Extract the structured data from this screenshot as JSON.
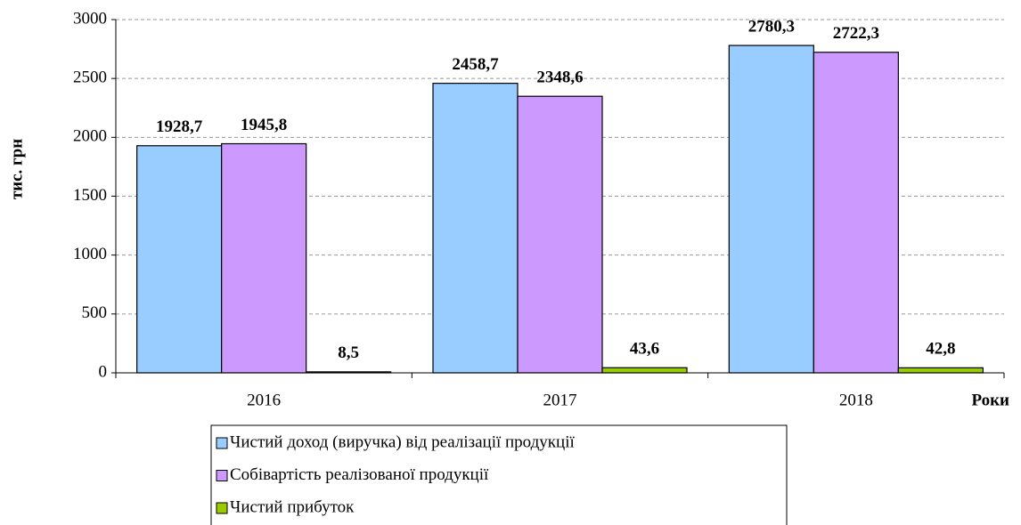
{
  "chart_data": {
    "type": "bar",
    "categories": [
      "2016",
      "2017",
      "2018"
    ],
    "series": [
      {
        "name": "Чистий доход (виручка) від реалізації продукції",
        "color": "#99ccff",
        "values": [
          1928.7,
          2458.7,
          2780.3
        ],
        "value_labels": [
          "1928,7",
          "2458,7",
          "2780,3"
        ]
      },
      {
        "name": "Собівартість реалізованої продукції",
        "color": "#cc99ff",
        "values": [
          1945.8,
          2348.6,
          2722.3
        ],
        "value_labels": [
          "1945,8",
          "2348,6",
          "2722,3"
        ]
      },
      {
        "name": "Чистий прибуток",
        "color": "#99cc00",
        "values": [
          8.5,
          43.6,
          42.8
        ],
        "value_labels": [
          "8,5",
          "43,6",
          "42,8"
        ]
      }
    ],
    "y_label": "тис. грн",
    "x_label": "Роки",
    "ylim": [
      0,
      3000
    ],
    "yticks": [
      0,
      500,
      1000,
      1500,
      2000,
      2500,
      3000
    ],
    "grid": true
  }
}
